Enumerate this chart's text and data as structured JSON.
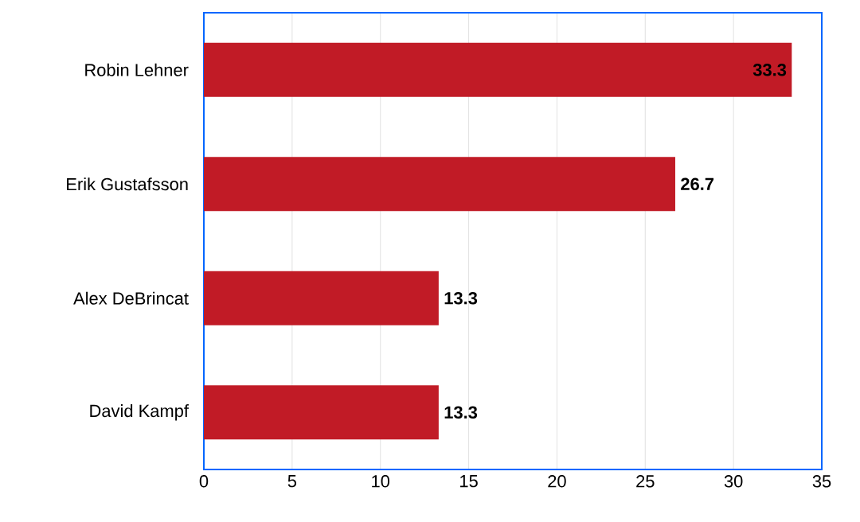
{
  "chart_data": {
    "type": "bar",
    "orientation": "horizontal",
    "categories": [
      "Robin Lehner",
      "Erik Gustafsson",
      "Alex DeBrincat",
      "David Kampf"
    ],
    "values": [
      33.3,
      26.7,
      13.3,
      13.3
    ],
    "color": "#c11b26",
    "xlim": [
      0,
      35
    ],
    "xticks": [
      0,
      5,
      10,
      15,
      20,
      25,
      30,
      35
    ],
    "grid": "x",
    "data_labels": true
  }
}
